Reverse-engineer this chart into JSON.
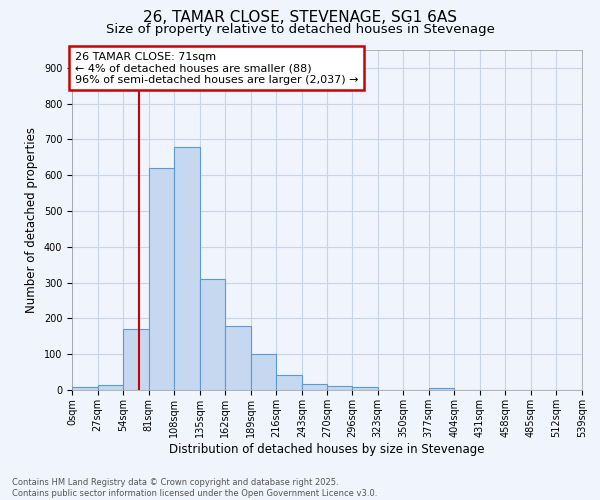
{
  "title": "26, TAMAR CLOSE, STEVENAGE, SG1 6AS",
  "subtitle": "Size of property relative to detached houses in Stevenage",
  "xlabel": "Distribution of detached houses by size in Stevenage",
  "ylabel": "Number of detached properties",
  "bins": [
    0,
    27,
    54,
    81,
    108,
    135,
    162,
    189,
    216,
    243,
    270,
    296,
    323,
    350,
    377,
    404,
    431,
    458,
    485,
    512,
    539
  ],
  "bar_heights": [
    7,
    14,
    170,
    620,
    680,
    310,
    180,
    100,
    42,
    17,
    12,
    9,
    0,
    0,
    5,
    0,
    0,
    0,
    0,
    0
  ],
  "bar_color": "#c5d8f0",
  "bar_edge_color": "#5b9bd5",
  "property_size": 71,
  "property_line_color": "#cc0000",
  "annotation_line1": "26 TAMAR CLOSE: 71sqm",
  "annotation_line2": "← 4% of detached houses are smaller (88)",
  "annotation_line3": "96% of semi-detached houses are larger (2,037) →",
  "annotation_box_color": "#cc0000",
  "annotation_bg_color": "#ffffff",
  "ylim": [
    0,
    950
  ],
  "yticks": [
    0,
    100,
    200,
    300,
    400,
    500,
    600,
    700,
    800,
    900
  ],
  "grid_color": "#c8d4e8",
  "bg_color": "#f0f4fc",
  "plot_bg_color": "#f0f4fc",
  "footer_line1": "Contains HM Land Registry data © Crown copyright and database right 2025.",
  "footer_line2": "Contains public sector information licensed under the Open Government Licence v3.0.",
  "title_fontsize": 11,
  "subtitle_fontsize": 9.5,
  "tick_label_fontsize": 7,
  "axis_label_fontsize": 8.5,
  "footer_fontsize": 6,
  "annotation_fontsize": 8
}
